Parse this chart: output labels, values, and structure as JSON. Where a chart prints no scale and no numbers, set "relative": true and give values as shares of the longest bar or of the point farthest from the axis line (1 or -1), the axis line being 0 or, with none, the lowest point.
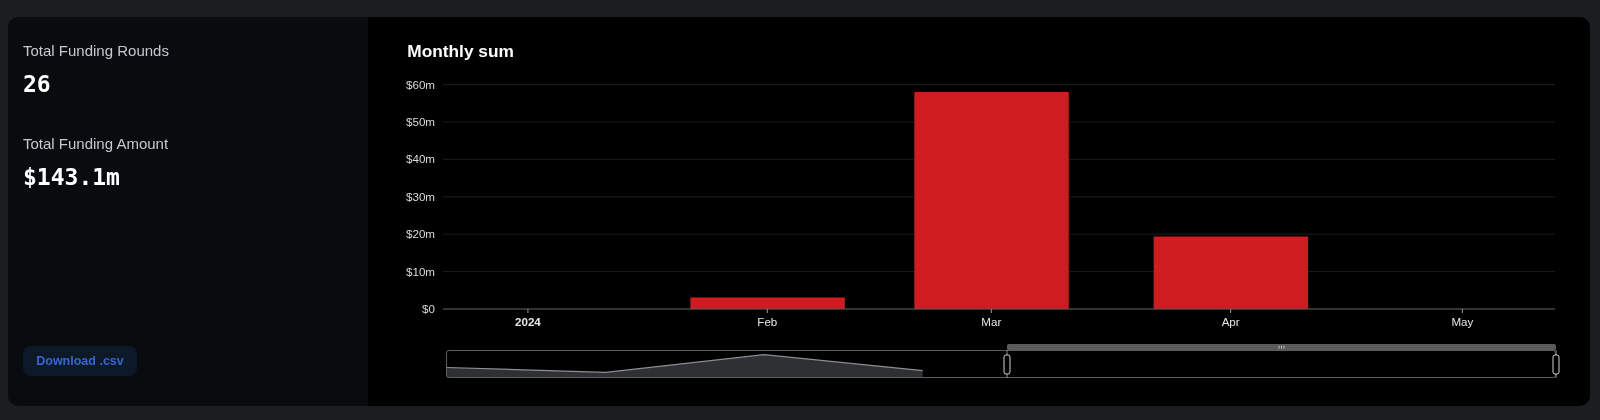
{
  "chart_data": [
    {
      "type": "other",
      "annotations": [
        "Total Funding Rounds",
        "26",
        "Total Funding Amount",
        "$143.1m",
        "Download .csv"
      ]
    },
    {
      "type": "bar",
      "title": "Monthly sum",
      "x": [
        "2024-02",
        "2024-03",
        "2024-04"
      ],
      "values": [
        3.1,
        58,
        19.4
      ],
      "color": "#cd1d20",
      "xlim": [
        "2023-12-21",
        "2024-05-13"
      ],
      "xticks": [
        {
          "value": "2024-01",
          "label": "2024"
        },
        {
          "value": "2024-02",
          "label": "Feb"
        },
        {
          "value": "2024-03",
          "label": "Mar"
        },
        {
          "value": "2024-04",
          "label": "Apr"
        },
        {
          "value": "2024-05",
          "label": "May"
        }
      ],
      "ylim": [
        0,
        60
      ],
      "yticks": [
        {
          "value": 0,
          "label": "$0"
        },
        {
          "value": 10,
          "label": "$10m"
        },
        {
          "value": 20,
          "label": "$20m"
        },
        {
          "value": 30,
          "label": "$30m"
        },
        {
          "value": 40,
          "label": "$40m"
        },
        {
          "value": 50,
          "label": "$50m"
        },
        {
          "value": 60,
          "label": "$60m"
        }
      ],
      "grid": "y"
    },
    {
      "type": "area",
      "relative": true,
      "categories": [
        null,
        null,
        null,
        null,
        null,
        null,
        null,
        null
      ],
      "values": [
        0.45,
        0.24,
        1,
        0.32,
        null,
        null,
        null,
        null
      ],
      "color": "#2f3034"
    }
  ]
}
